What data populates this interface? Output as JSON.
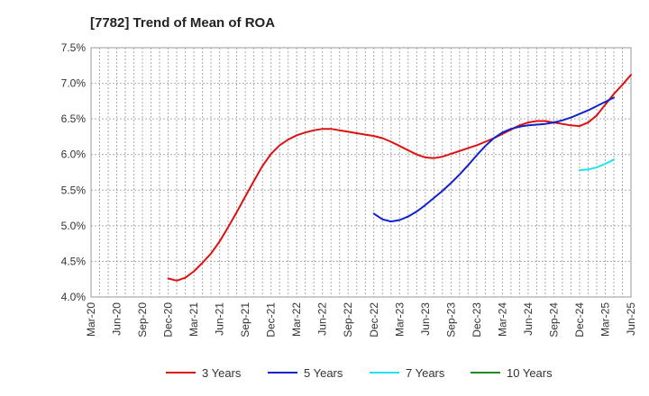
{
  "chart_data": {
    "type": "line",
    "title": "[7782]  Trend of Mean of ROA",
    "xlabel": "",
    "ylabel": "",
    "grid": true,
    "legend_position": "bottom",
    "ylim": [
      4.0,
      7.5
    ],
    "y_ticks": [
      "4.0%",
      "4.5%",
      "5.0%",
      "5.5%",
      "6.0%",
      "6.5%",
      "7.0%",
      "7.5%"
    ],
    "x_ticks": [
      "Mar-20",
      "Jun-20",
      "Sep-20",
      "Dec-20",
      "Mar-21",
      "Jun-21",
      "Sep-21",
      "Dec-21",
      "Mar-22",
      "Jun-22",
      "Sep-22",
      "Dec-22",
      "Mar-23",
      "Jun-23",
      "Sep-23",
      "Dec-23",
      "Mar-24",
      "Jun-24",
      "Sep-24",
      "Dec-24",
      "Mar-25",
      "Jun-25"
    ],
    "series": [
      {
        "name": "3 Years",
        "color": "#dd1111",
        "points": [
          [
            "Dec-20",
            4.26
          ],
          [
            "Jan-21",
            4.23
          ],
          [
            "Feb-21",
            4.27
          ],
          [
            "Mar-21",
            4.36
          ],
          [
            "Apr-21",
            4.48
          ],
          [
            "May-21",
            4.61
          ],
          [
            "Jun-21",
            4.78
          ],
          [
            "Jul-21",
            4.98
          ],
          [
            "Aug-21",
            5.19
          ],
          [
            "Sep-21",
            5.41
          ],
          [
            "Oct-21",
            5.63
          ],
          [
            "Nov-21",
            5.84
          ],
          [
            "Dec-21",
            6.01
          ],
          [
            "Jan-22",
            6.13
          ],
          [
            "Feb-22",
            6.21
          ],
          [
            "Mar-22",
            6.27
          ],
          [
            "Apr-22",
            6.31
          ],
          [
            "May-22",
            6.34
          ],
          [
            "Jun-22",
            6.36
          ],
          [
            "Jul-22",
            6.36
          ],
          [
            "Aug-22",
            6.34
          ],
          [
            "Sep-22",
            6.32
          ],
          [
            "Oct-22",
            6.3
          ],
          [
            "Nov-22",
            6.28
          ],
          [
            "Dec-22",
            6.26
          ],
          [
            "Jan-23",
            6.23
          ],
          [
            "Feb-23",
            6.18
          ],
          [
            "Mar-23",
            6.12
          ],
          [
            "Apr-23",
            6.06
          ],
          [
            "May-23",
            6.0
          ],
          [
            "Jun-23",
            5.96
          ],
          [
            "Jul-23",
            5.95
          ],
          [
            "Aug-23",
            5.97
          ],
          [
            "Sep-23",
            6.01
          ],
          [
            "Oct-23",
            6.05
          ],
          [
            "Nov-23",
            6.09
          ],
          [
            "Dec-23",
            6.13
          ],
          [
            "Jan-24",
            6.18
          ],
          [
            "Feb-24",
            6.23
          ],
          [
            "Mar-24",
            6.29
          ],
          [
            "Apr-24",
            6.35
          ],
          [
            "May-24",
            6.41
          ],
          [
            "Jun-24",
            6.45
          ],
          [
            "Jul-24",
            6.47
          ],
          [
            "Aug-24",
            6.47
          ],
          [
            "Sep-24",
            6.45
          ],
          [
            "Oct-24",
            6.43
          ],
          [
            "Nov-24",
            6.41
          ],
          [
            "Dec-24",
            6.4
          ],
          [
            "Jan-25",
            6.45
          ],
          [
            "Feb-25",
            6.55
          ],
          [
            "Mar-25",
            6.7
          ],
          [
            "Apr-25",
            6.85
          ],
          [
            "May-25",
            6.98
          ],
          [
            "Jun-25",
            7.12
          ]
        ]
      },
      {
        "name": "5 Years",
        "color": "#1122cc",
        "points": [
          [
            "Dec-22",
            5.17
          ],
          [
            "Jan-23",
            5.09
          ],
          [
            "Feb-23",
            5.06
          ],
          [
            "Mar-23",
            5.08
          ],
          [
            "Apr-23",
            5.13
          ],
          [
            "May-23",
            5.2
          ],
          [
            "Jun-23",
            5.29
          ],
          [
            "Jul-23",
            5.39
          ],
          [
            "Aug-23",
            5.49
          ],
          [
            "Sep-23",
            5.6
          ],
          [
            "Oct-23",
            5.72
          ],
          [
            "Nov-23",
            5.85
          ],
          [
            "Dec-23",
            5.99
          ],
          [
            "Jan-24",
            6.12
          ],
          [
            "Feb-24",
            6.23
          ],
          [
            "Mar-24",
            6.31
          ],
          [
            "Apr-24",
            6.36
          ],
          [
            "May-24",
            6.39
          ],
          [
            "Jun-24",
            6.41
          ],
          [
            "Jul-24",
            6.42
          ],
          [
            "Aug-24",
            6.43
          ],
          [
            "Sep-24",
            6.45
          ],
          [
            "Oct-24",
            6.48
          ],
          [
            "Nov-24",
            6.52
          ],
          [
            "Dec-24",
            6.57
          ],
          [
            "Jan-25",
            6.62
          ],
          [
            "Feb-25",
            6.68
          ],
          [
            "Mar-25",
            6.74
          ],
          [
            "Apr-25",
            6.8
          ]
        ]
      },
      {
        "name": "7 Years",
        "color": "#22e0ee",
        "points": [
          [
            "Dec-24",
            5.78
          ],
          [
            "Jan-25",
            5.79
          ],
          [
            "Feb-25",
            5.82
          ],
          [
            "Mar-25",
            5.87
          ],
          [
            "Apr-25",
            5.93
          ]
        ]
      },
      {
        "name": "10 Years",
        "color": "#228822",
        "points": []
      }
    ]
  }
}
